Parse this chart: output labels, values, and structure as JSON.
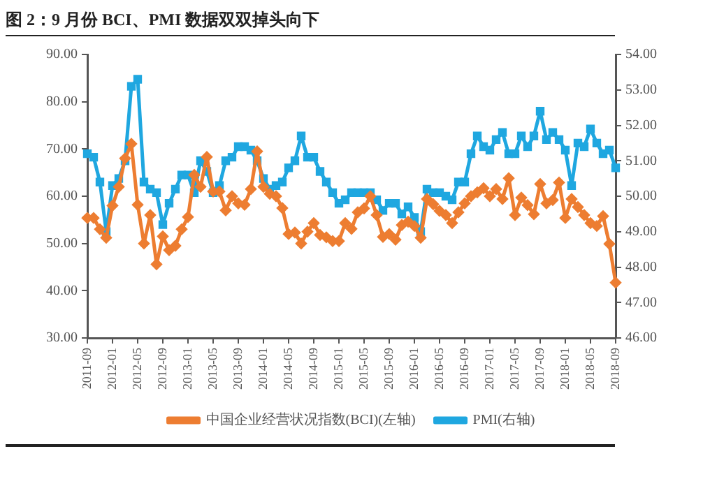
{
  "chart_data": {
    "type": "line",
    "title": "图 2：9 月份 BCI、PMI 数据双双掉头向下",
    "categories": [
      "2011-09",
      null,
      null,
      null,
      "2012-01",
      null,
      null,
      null,
      "2012-05",
      null,
      null,
      null,
      "2012-09",
      null,
      null,
      null,
      "2013-01",
      null,
      null,
      null,
      "2013-05",
      null,
      null,
      null,
      "2013-09",
      null,
      null,
      null,
      "2014-01",
      null,
      null,
      null,
      "2014-05",
      null,
      null,
      null,
      "2014-09",
      null,
      null,
      null,
      "2015-01",
      null,
      null,
      null,
      "2015-05",
      null,
      null,
      null,
      "2015-09",
      null,
      null,
      null,
      "2016-01",
      null,
      null,
      null,
      "2016-05",
      null,
      null,
      null,
      "2016-09",
      null,
      null,
      null,
      "2017-01",
      null,
      null,
      null,
      "2017-05",
      null,
      null,
      null,
      "2017-09",
      null,
      null,
      null,
      "2018-01",
      null,
      null,
      null,
      "2018-05",
      null,
      null,
      null,
      "2018-09"
    ],
    "series": [
      {
        "name": "中国企业经营状况指数(BCI)(左轴)",
        "color": "#ed7d31",
        "marker": "diamond",
        "values": [
          55.4,
          55.4,
          53,
          51.2,
          58,
          62,
          68,
          71.1,
          58.2,
          50,
          56,
          45.6,
          51.5,
          48.6,
          49.5,
          53,
          55.6,
          64.5,
          62,
          68.3,
          61,
          61,
          57,
          60,
          58.5,
          58.2,
          61.5,
          69.5,
          62,
          60.5,
          60,
          57.5,
          52,
          52.3,
          50,
          52.5,
          54.3,
          51.8,
          51.3,
          50.5,
          50.5,
          54.3,
          53.1,
          56.6,
          57.4,
          60,
          56,
          51.4,
          52,
          50.8,
          53.9,
          54.6,
          53.7,
          51.2,
          59.4,
          58.3,
          56.9,
          56,
          54.3,
          56.6,
          58.5,
          60,
          60.8,
          61.7,
          60,
          61.5,
          59.4,
          63.8,
          56,
          59.7,
          58.1,
          56.2,
          62.6,
          58.5,
          59.2,
          62.9,
          55.4,
          59.4,
          57.7,
          56,
          54.3,
          53.7,
          55.8,
          49.9,
          41.7
        ]
      },
      {
        "name": "PMI(右轴)",
        "color": "#1fa7e0",
        "marker": "square",
        "axis": "y2",
        "values": [
          51.2,
          51.1,
          50.4,
          49,
          50.3,
          50.5,
          51,
          53.1,
          53.3,
          50.4,
          50.2,
          50.1,
          49.2,
          49.8,
          50.2,
          50.6,
          50.6,
          50.1,
          51,
          50.7,
          50.1,
          50.3,
          51,
          51.1,
          51.4,
          51.4,
          51.3,
          51,
          50.5,
          50.2,
          50.3,
          50.4,
          50.8,
          51,
          51.7,
          51.1,
          51.1,
          50.7,
          50.4,
          50.1,
          49.8,
          49.9,
          50.1,
          50.1,
          50.1,
          50.1,
          49.9,
          49.6,
          49.8,
          49.8,
          49.5,
          49.7,
          49.4,
          49,
          50.2,
          50.1,
          50.1,
          50,
          49.9,
          50.4,
          50.4,
          51.2,
          51.7,
          51.4,
          51.3,
          51.6,
          51.8,
          51.2,
          51.2,
          51.7,
          51.4,
          51.7,
          52.4,
          51.6,
          51.8,
          51.6,
          51.3,
          50.3,
          51.5,
          51.4,
          51.9,
          51.5,
          51.2,
          51.3,
          50.8
        ]
      }
    ],
    "ylim": [
      30,
      90
    ],
    "yticks": [
      {
        "value": 30,
        "label": "30.00"
      },
      {
        "value": 40,
        "label": "40.00"
      },
      {
        "value": 50,
        "label": "50.00"
      },
      {
        "value": 60,
        "label": "60.00"
      },
      {
        "value": 70,
        "label": "70.00"
      },
      {
        "value": 80,
        "label": "80.00"
      },
      {
        "value": 90,
        "label": "90.00"
      }
    ],
    "y2lim": [
      46,
      54
    ],
    "y2ticks": [
      {
        "value": 46,
        "label": "46.00"
      },
      {
        "value": 47,
        "label": "47.00"
      },
      {
        "value": 48,
        "label": "48.00"
      },
      {
        "value": 49,
        "label": "49.00"
      },
      {
        "value": 50,
        "label": "50.00"
      },
      {
        "value": 51,
        "label": "51.00"
      },
      {
        "value": 52,
        "label": "52.00"
      },
      {
        "value": 53,
        "label": "53.00"
      },
      {
        "value": 54,
        "label": "54.00"
      }
    ],
    "grid": false,
    "legend": "bottom",
    "line_style": "solid"
  }
}
